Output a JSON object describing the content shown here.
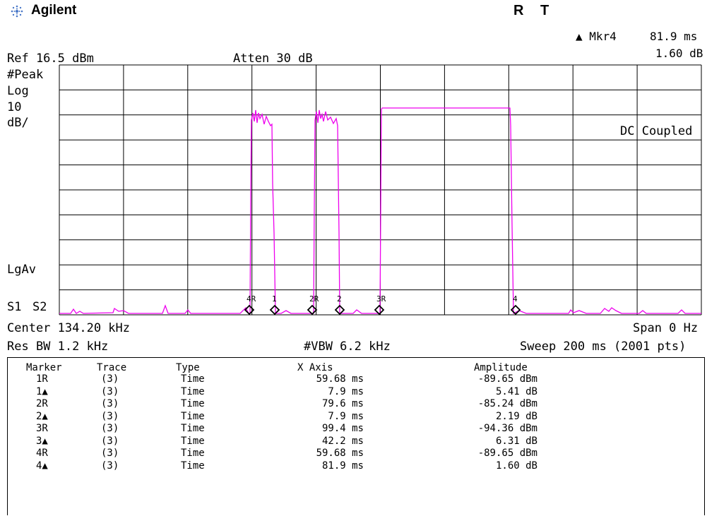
{
  "header": {
    "brand": "Agilent",
    "status_r": "R",
    "status_t": "T",
    "marker_label": "▲ Mkr4",
    "marker_x": "81.9 ms",
    "marker_y": "1.60 dB"
  },
  "settings": {
    "ref": "Ref 16.5 dBm",
    "atten": "Atten 30 dB",
    "detector": "#Peak",
    "scale_type": "Log",
    "scale_value": "10",
    "scale_unit": "dB/",
    "coupling": "DC Coupled",
    "avg": "LgAv",
    "s1": "S1",
    "s2": "S2",
    "center": "Center 134.20 kHz",
    "span": "Span 0 Hz",
    "res_bw": "Res BW 1.2 kHz",
    "vbw": "#VBW 6.2 kHz",
    "sweep": "Sweep 200 ms (2001 pts)"
  },
  "trace_color": "#ee00ee",
  "marker_labels_on_plot": [
    "4R",
    "1",
    "2R",
    "2",
    "3R",
    "4"
  ],
  "table": {
    "headers": [
      "Marker",
      "Trace",
      "Type",
      "X Axis",
      "Amplitude"
    ],
    "rows": [
      [
        "1R",
        "(3)",
        "Time",
        "59.68 ms",
        "-89.65 dBm"
      ],
      [
        "1▲",
        "(3)",
        "Time",
        "7.9 ms",
        "5.41 dB"
      ],
      [
        "2R",
        "(3)",
        "Time",
        "79.6 ms",
        "-85.24 dBm"
      ],
      [
        "2▲",
        "(3)",
        "Time",
        "7.9 ms",
        "2.19 dB"
      ],
      [
        "3R",
        "(3)",
        "Time",
        "99.4 ms",
        "-94.36 dBm"
      ],
      [
        "3▲",
        "(3)",
        "Time",
        "42.2 ms",
        "6.31 dB"
      ],
      [
        "4R",
        "(3)",
        "Time",
        "59.68 ms",
        "-89.65 dBm"
      ],
      [
        "4▲",
        "(3)",
        "Time",
        "81.9 ms",
        "1.60 dB"
      ]
    ]
  }
}
